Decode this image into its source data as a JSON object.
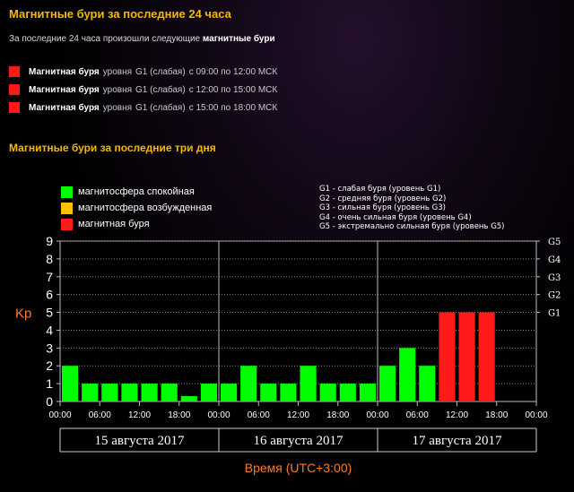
{
  "header": {
    "title": "Магнитные бури за последние 24 часа",
    "intro_prefix": "За последние 24 часа произошли следующие",
    "intro_bold": "магнитные бури"
  },
  "storms": [
    {
      "name": "Магнитная буря",
      "level": "уровня",
      "class": "G1 (слабая)",
      "time": "с 09:00 по 12:00 МСК"
    },
    {
      "name": "Магнитная буря",
      "level": "уровня",
      "class": "G1 (слабая)",
      "time": "с 12:00 по 15:00 МСК"
    },
    {
      "name": "Магнитная буря",
      "level": "уровня",
      "class": "G1 (слабая)",
      "time": "с 15:00 по 18:00 МСК"
    }
  ],
  "section2": {
    "title": "Магнитные бури за последние три дня"
  },
  "legend": [
    {
      "label": "магнитосфера спокойная",
      "color": "#00ff00"
    },
    {
      "label": "магнитосфера возбужденная",
      "color": "#ffc000"
    },
    {
      "label": "магнитная буря",
      "color": "#ff1a1a"
    }
  ],
  "g_legend": [
    "G1 - слабая буря (уровень G1)",
    "G2 - средняя буря (уровень G2)",
    "G3 - сильная буря (уровень G3)",
    "G4 - очень сильная буря (уровень G4)",
    "G5 - экстремально сильная буря (уровень G5)"
  ],
  "colors": {
    "calm": "#00ff00",
    "excited": "#ffc000",
    "storm": "#ff1a1a",
    "accent": "#f5b800",
    "axis_title": "#ff7a2a"
  },
  "chart_data": {
    "type": "bar",
    "ylabel": "Kp",
    "xlabel": "Время (UTC+3:00)",
    "ylim": [
      0,
      9
    ],
    "yticks": [
      0,
      1,
      2,
      3,
      4,
      5,
      6,
      7,
      8,
      9
    ],
    "right_ticks": [
      {
        "value": 5,
        "label": "G1"
      },
      {
        "value": 6,
        "label": "G2"
      },
      {
        "value": 7,
        "label": "G3"
      },
      {
        "value": 8,
        "label": "G4"
      },
      {
        "value": 9,
        "label": "G5"
      }
    ],
    "x_tick_labels": [
      "00:00",
      "06:00",
      "12:00",
      "18:00",
      "00:00",
      "06:00",
      "12:00",
      "18:00",
      "00:00",
      "06:00",
      "12:00",
      "18:00",
      "00:00"
    ],
    "days": [
      "15 августа 2017",
      "16 августа 2017",
      "17 августа 2017"
    ],
    "bars": [
      {
        "value": 2,
        "status": "calm"
      },
      {
        "value": 1,
        "status": "calm"
      },
      {
        "value": 1,
        "status": "calm"
      },
      {
        "value": 1,
        "status": "calm"
      },
      {
        "value": 1,
        "status": "calm"
      },
      {
        "value": 1,
        "status": "calm"
      },
      {
        "value": 0.3,
        "status": "calm"
      },
      {
        "value": 1,
        "status": "calm"
      },
      {
        "value": 1,
        "status": "calm"
      },
      {
        "value": 2,
        "status": "calm"
      },
      {
        "value": 1,
        "status": "calm"
      },
      {
        "value": 1,
        "status": "calm"
      },
      {
        "value": 2,
        "status": "calm"
      },
      {
        "value": 1,
        "status": "calm"
      },
      {
        "value": 1,
        "status": "calm"
      },
      {
        "value": 1,
        "status": "calm"
      },
      {
        "value": 2,
        "status": "calm"
      },
      {
        "value": 3,
        "status": "calm"
      },
      {
        "value": 2,
        "status": "calm"
      },
      {
        "value": 5,
        "status": "storm"
      },
      {
        "value": 5,
        "status": "storm"
      },
      {
        "value": 5,
        "status": "storm"
      }
    ],
    "total_slots": 24,
    "grid": true
  }
}
